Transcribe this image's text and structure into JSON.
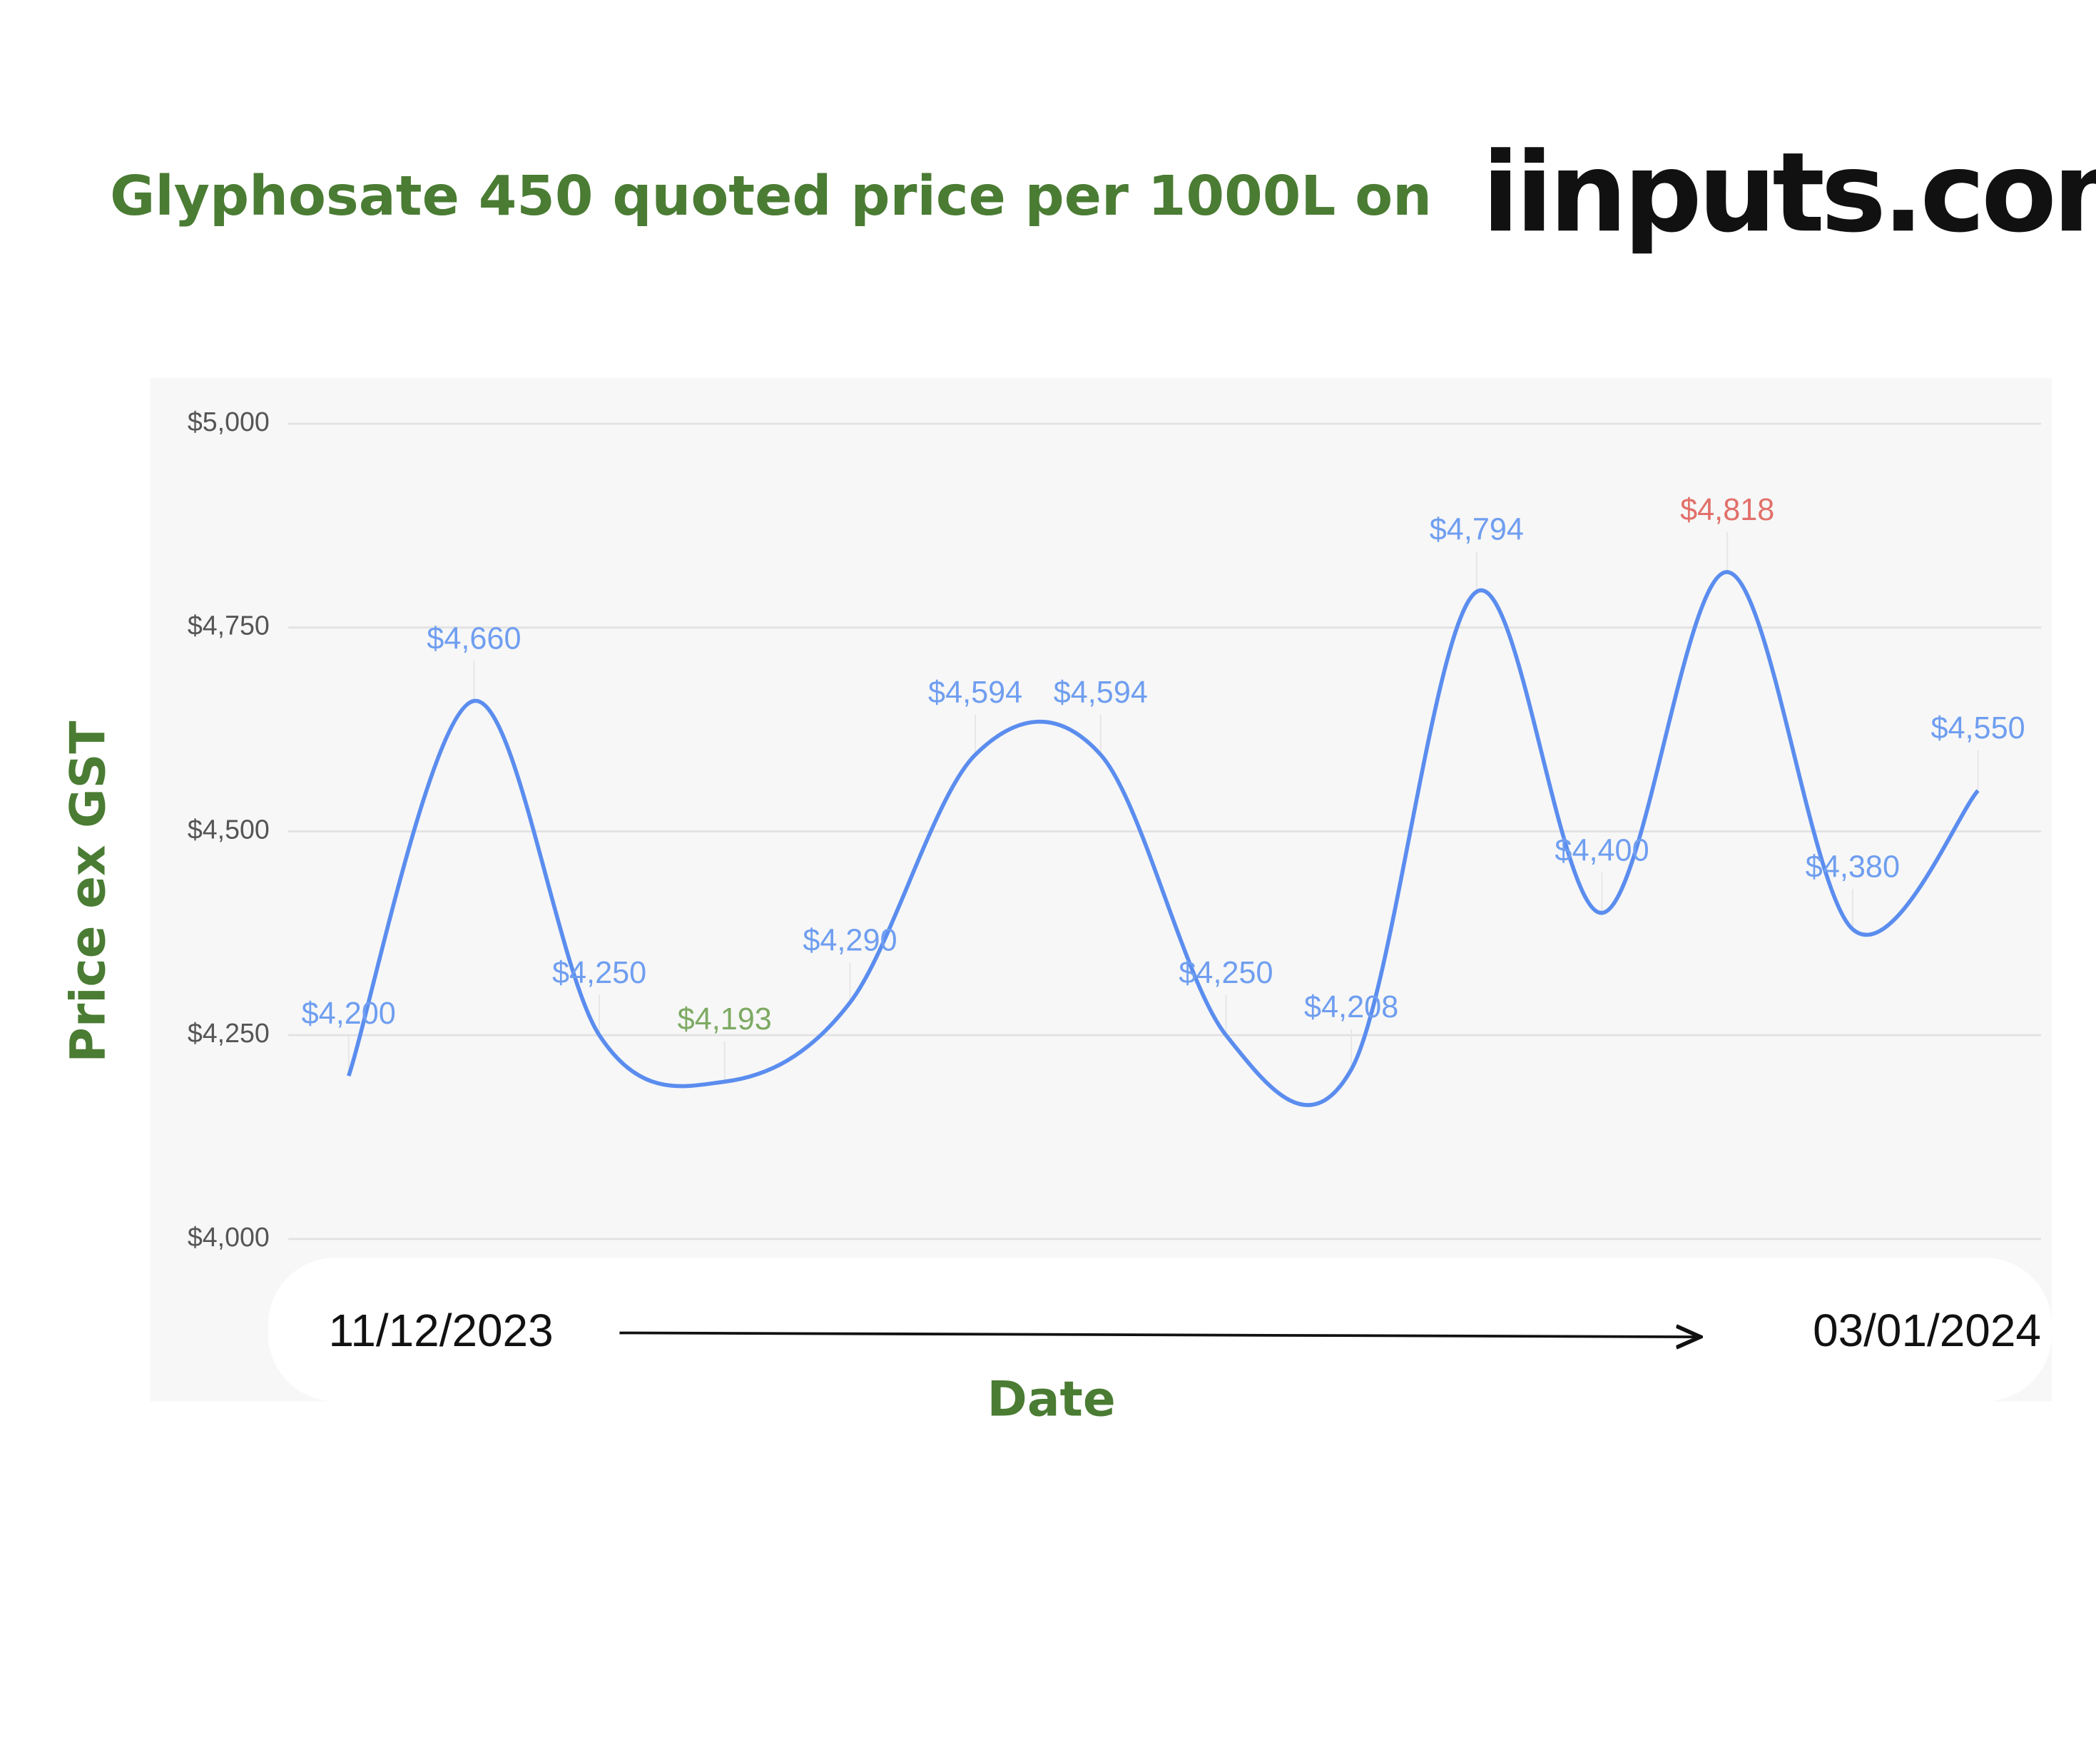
{
  "chart_data": {
    "type": "line",
    "title": "Glyphosate 450 quoted price per 1000L on",
    "logo": "iinputs.com",
    "x_label": "Date",
    "y_label": "Price ex GST",
    "categories": [
      "11/12/2023",
      null,
      null,
      null,
      null,
      null,
      null,
      null,
      null,
      null,
      null,
      null,
      null,
      "03/01/2024"
    ],
    "series": [
      {
        "name": "Price",
        "color": "#5b8def",
        "values": [
          4200,
          4660,
          4250,
          4193,
          4290,
          4594,
          4594,
          4250,
          4208,
          4794,
          4400,
          4818,
          4380,
          4550
        ],
        "value_labels": [
          "$4,200",
          "$4,660",
          "$4,250",
          "$4,193",
          "$4,290",
          "$4,594",
          "$4,594",
          "$4,250",
          "$4,208",
          "$4,794",
          "$4,400",
          "$4,818",
          "$4,380",
          "$4,550"
        ],
        "label_colors": [
          "#6f9ef0",
          "#6f9ef0",
          "#6f9ef0",
          "#7daa63",
          "#6f9ef0",
          "#6f9ef0",
          "#6f9ef0",
          "#6f9ef0",
          "#6f9ef0",
          "#6f9ef0",
          "#6f9ef0",
          "#e2706a",
          "#6f9ef0",
          "#6f9ef0"
        ]
      }
    ],
    "ylim": [
      4000,
      5000
    ],
    "yticks": [
      {
        "value": 4000,
        "label": "$4,000"
      },
      {
        "value": 4250,
        "label": "$4,250"
      },
      {
        "value": 4500,
        "label": "$4,500"
      },
      {
        "value": 4750,
        "label": "$4,750"
      },
      {
        "value": 5000,
        "label": "$5,000"
      }
    ],
    "grid": true
  }
}
